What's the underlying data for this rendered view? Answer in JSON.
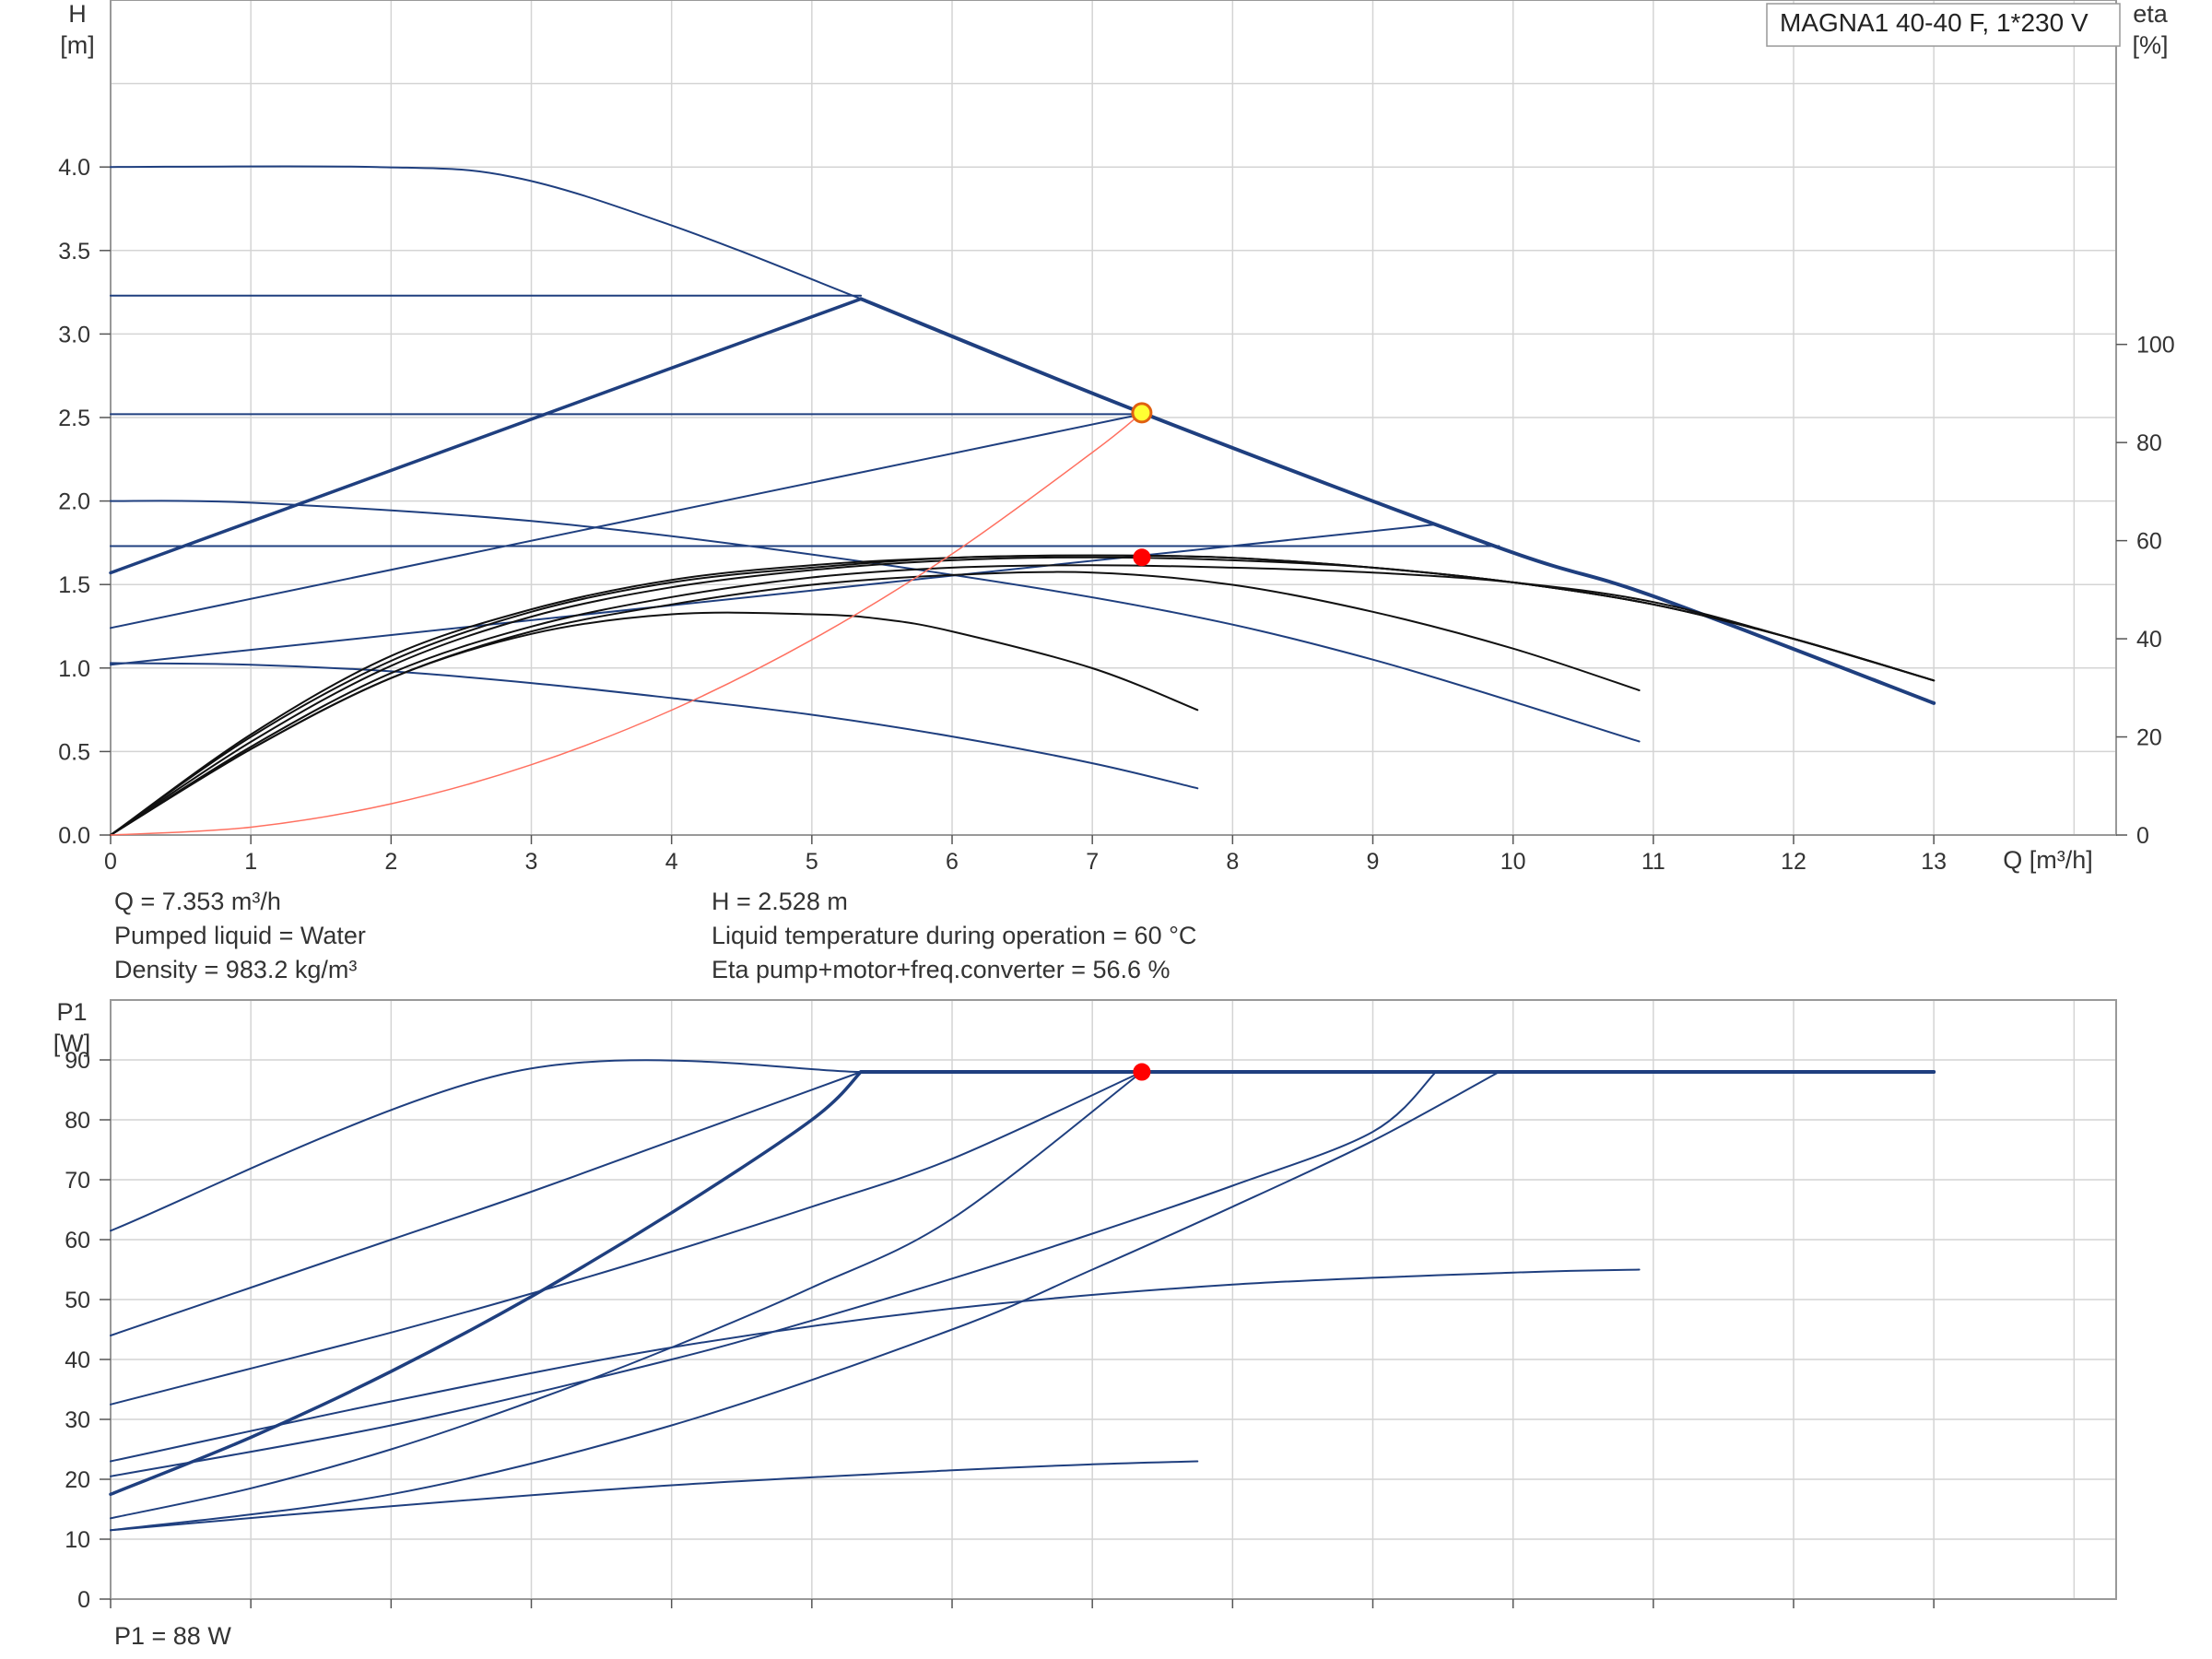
{
  "legend_label": "MAGNA1 40-40 F, 1*230 V",
  "info": {
    "q": "Q = 7.353 m³/h",
    "h": "H = 2.528 m",
    "liquid": "Pumped liquid = Water",
    "temp": "Liquid temperature during operation = 60 °C",
    "density": "Density = 983.2 kg/m³",
    "eta": "Eta pump+motor+freq.converter = 56.6 %",
    "p1": "P1 = 88 W"
  },
  "colors": {
    "curve": "#1f3f7f",
    "eta": "#111111",
    "system": "#ff7060",
    "duty": "#ff0000",
    "duty_highlight": "#ffff33",
    "grid": "#d4d4d4",
    "frame": "#999999"
  },
  "chart_data": [
    {
      "type": "line",
      "title": "",
      "xlabel": "Q [m³/h]",
      "ylabel": "H\n[m]",
      "y2label": "eta\n[%]",
      "xlim": [
        0,
        14.3
      ],
      "ylim": [
        0,
        5
      ],
      "y2lim": [
        0,
        170.2
      ],
      "xticks": [
        0,
        1,
        2,
        3,
        4,
        5,
        6,
        7,
        8,
        9,
        10,
        11,
        12,
        13
      ],
      "yticks": [
        0.0,
        0.5,
        1.0,
        1.5,
        2.0,
        2.5,
        3.0,
        3.5,
        4.0
      ],
      "y2ticks": [
        0,
        20,
        40,
        60,
        80,
        100
      ],
      "grid": true,
      "legend": "top-right",
      "series": [
        {
          "role": "head",
          "width": 2,
          "x": [
            0,
            1.9,
            2.87,
            4,
            5.35,
            7.353,
            9.9,
            11,
            13
          ],
          "y": [
            4.0,
            4.0,
            3.94,
            3.65,
            3.21,
            2.528,
            1.72,
            1.43,
            0.79
          ]
        },
        {
          "role": "head",
          "width": 4,
          "x": [
            5.35,
            7.353,
            9.9,
            11,
            13
          ],
          "y": [
            3.21,
            2.528,
            1.72,
            1.43,
            0.79
          ]
        },
        {
          "role": "head",
          "width": 2,
          "x": [
            0,
            5.35
          ],
          "y": [
            3.23,
            3.23
          ]
        },
        {
          "role": "head",
          "width": 3.5,
          "x": [
            0,
            5.35
          ],
          "y": [
            1.57,
            3.21
          ]
        },
        {
          "role": "head",
          "width": 2,
          "x": [
            0,
            7.353
          ],
          "y": [
            2.52,
            2.52
          ]
        },
        {
          "role": "head",
          "width": 2,
          "x": [
            0,
            7.353
          ],
          "y": [
            1.24,
            2.52
          ]
        },
        {
          "role": "head",
          "width": 2,
          "x": [
            0,
            9.9
          ],
          "y": [
            1.73,
            1.73
          ]
        },
        {
          "role": "head",
          "width": 2,
          "x": [
            0,
            9.45
          ],
          "y": [
            1.02,
            1.86
          ]
        },
        {
          "role": "head",
          "width": 2,
          "x": [
            0,
            1,
            3,
            5,
            7.353,
            9,
            10.9
          ],
          "y": [
            2.0,
            1.99,
            1.88,
            1.68,
            1.37,
            1.05,
            0.56
          ]
        },
        {
          "role": "head",
          "width": 2,
          "x": [
            0,
            1,
            2,
            3,
            4,
            5,
            6,
            7,
            7.75
          ],
          "y": [
            1.03,
            1.02,
            0.98,
            0.91,
            0.82,
            0.72,
            0.59,
            0.43,
            0.28
          ]
        },
        {
          "role": "eta",
          "width": 2,
          "x": [
            0,
            1,
            2,
            3,
            4,
            5,
            5.5,
            6,
            7,
            7.75
          ],
          "y2": [
            0,
            17.5,
            32,
            41,
            45,
            45,
            44,
            41.5,
            34,
            25.5
          ]
        },
        {
          "role": "eta",
          "width": 2,
          "x": [
            0,
            1,
            2,
            3,
            4,
            5,
            6,
            7,
            8,
            9,
            10,
            10.9
          ],
          "y2": [
            0,
            17.5,
            32,
            41.5,
            47,
            51,
            53,
            53.5,
            51,
            45.5,
            38,
            29.5
          ]
        },
        {
          "role": "eta",
          "width": 2,
          "x": [
            0,
            1,
            2,
            3,
            4,
            5,
            6,
            7,
            8,
            9,
            10,
            11,
            12,
            13
          ],
          "y2": [
            0,
            18,
            33,
            42.5,
            48.5,
            52.5,
            54.5,
            55,
            54.5,
            53.5,
            51.5,
            47.5,
            40,
            31.5
          ]
        },
        {
          "role": "eta",
          "width": 2,
          "x": [
            0,
            1,
            2,
            3,
            4,
            5,
            6,
            7,
            8,
            9,
            10,
            11,
            12,
            13
          ],
          "y2": [
            0,
            19,
            34.5,
            44.5,
            50.5,
            54,
            56,
            56.6,
            56,
            54.5,
            51.5,
            47,
            40,
            31.5
          ]
        },
        {
          "role": "eta",
          "width": 2,
          "x": [
            0,
            1,
            2,
            3,
            4,
            5,
            6,
            7,
            8,
            9,
            10,
            11,
            12,
            13
          ],
          "y2": [
            0,
            20,
            35.5,
            45.5,
            51.5,
            54.5,
            56.5,
            57,
            56.5,
            54.5,
            51.5,
            47,
            40,
            31.5
          ]
        },
        {
          "role": "eta",
          "width": 2,
          "x": [
            0,
            1,
            2,
            3,
            4,
            5,
            6,
            7,
            8,
            9,
            10,
            11,
            12,
            13
          ],
          "y2": [
            0,
            20.5,
            36.5,
            46,
            52,
            55,
            56.5,
            57,
            56.5,
            54.5,
            51.5,
            47,
            40,
            31.5
          ]
        },
        {
          "role": "system",
          "width": 1.5,
          "x": [
            0,
            1,
            2,
            3,
            4,
            5,
            6,
            7,
            7.353
          ],
          "y": [
            0,
            0.047,
            0.187,
            0.421,
            0.748,
            1.169,
            1.683,
            2.291,
            2.528
          ]
        }
      ],
      "points": [
        {
          "role": "duty",
          "x": 7.353,
          "y": 2.528
        },
        {
          "role": "eta_duty",
          "x": 7.353,
          "y2": 56.6
        }
      ]
    },
    {
      "type": "line",
      "title": "",
      "xlabel": "",
      "ylabel": "P1\n[W]",
      "xlim": [
        0,
        14.3
      ],
      "ylim": [
        0,
        100
      ],
      "xticks": [
        0,
        1,
        2,
        3,
        4,
        5,
        6,
        7,
        8,
        9,
        10,
        11,
        12,
        13
      ],
      "yticks": [
        0,
        10,
        20,
        30,
        40,
        50,
        60,
        70,
        80,
        90
      ],
      "grid": true,
      "series": [
        {
          "role": "power",
          "width": 2,
          "x": [
            0,
            2.87,
            5.35
          ],
          "y": [
            61.5,
            88,
            88
          ]
        },
        {
          "role": "power",
          "width": 4,
          "x": [
            5.35,
            7.353,
            9.9,
            13
          ],
          "y": [
            88,
            88,
            88,
            88
          ]
        },
        {
          "role": "power",
          "width": 2,
          "x": [
            0,
            1,
            2,
            3,
            4,
            5.35
          ],
          "y": [
            44,
            52,
            60,
            68,
            76.5,
            88
          ]
        },
        {
          "role": "power",
          "width": 3.5,
          "x": [
            0,
            1,
            2,
            3,
            4,
            5,
            5.35
          ],
          "y": [
            17.5,
            27,
            38,
            50.5,
            64.5,
            80,
            88
          ]
        },
        {
          "role": "power",
          "width": 2,
          "x": [
            0,
            1,
            2,
            3,
            4,
            5,
            6,
            7.353
          ],
          "y": [
            32.5,
            38.5,
            44.5,
            51,
            58,
            65.5,
            73.5,
            88
          ]
        },
        {
          "role": "power",
          "width": 2,
          "x": [
            0,
            1,
            2,
            3,
            4,
            5,
            6,
            7.353
          ],
          "y": [
            13.5,
            18.5,
            25,
            33,
            42,
            52,
            63.5,
            88
          ]
        },
        {
          "role": "power",
          "width": 2,
          "x": [
            0,
            2,
            4,
            5,
            6,
            7,
            8,
            9,
            9.45
          ],
          "y": [
            20.5,
            29,
            40,
            46.5,
            53.5,
            61,
            69,
            78,
            88
          ]
        },
        {
          "role": "power",
          "width": 2,
          "x": [
            0,
            2,
            4,
            6,
            7,
            8,
            9,
            9.9
          ],
          "y": [
            11.5,
            17.5,
            29,
            45,
            55,
            65.5,
            76.5,
            88
          ]
        },
        {
          "role": "power",
          "width": 2,
          "x": [
            0,
            2,
            4,
            6,
            8,
            10,
            10.9
          ],
          "y": [
            23,
            33,
            42,
            48.5,
            52.5,
            54.5,
            55
          ]
        },
        {
          "role": "power",
          "width": 2,
          "x": [
            0,
            2,
            4,
            6,
            7,
            7.75
          ],
          "y": [
            11.5,
            15.5,
            19,
            21.5,
            22.5,
            23
          ]
        }
      ],
      "points": [
        {
          "role": "duty",
          "x": 7.353,
          "y": 88
        }
      ]
    }
  ]
}
